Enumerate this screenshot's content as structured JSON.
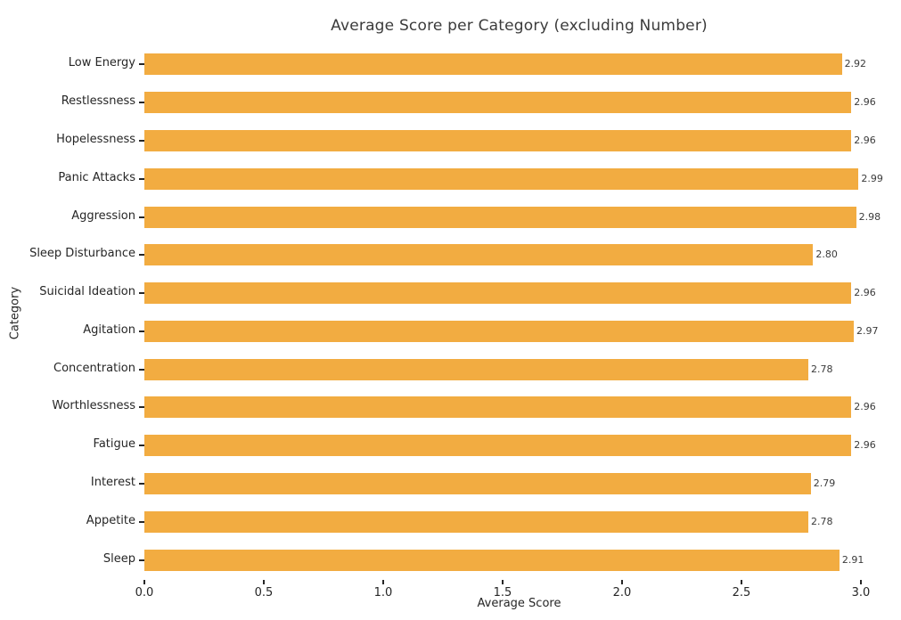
{
  "colors": {
    "bar": "#F2AC41",
    "tick_text": "#262626",
    "title_text": "#3b3b3b",
    "background": "#ffffff"
  },
  "chart_data": {
    "type": "bar",
    "orientation": "horizontal",
    "title": "Average Score per Category (excluding Number)",
    "xlabel": "Average Score",
    "ylabel": "Category",
    "categories": [
      "Low Energy",
      "Restlessness",
      "Hopelessness",
      "Panic Attacks",
      "Aggression",
      "Sleep Disturbance",
      "Suicidal Ideation",
      "Agitation",
      "Concentration",
      "Worthlessness",
      "Fatigue",
      "Interest",
      "Appetite",
      "Sleep"
    ],
    "values": [
      2.92,
      2.96,
      2.96,
      2.99,
      2.98,
      2.8,
      2.96,
      2.97,
      2.78,
      2.96,
      2.96,
      2.79,
      2.78,
      2.91
    ],
    "value_labels": [
      "2.92",
      "2.96",
      "2.96",
      "2.99",
      "2.98",
      "2.80",
      "2.96",
      "2.97",
      "2.78",
      "2.96",
      "2.96",
      "2.79",
      "2.78",
      "2.91"
    ],
    "xticks": [
      0.0,
      0.5,
      1.0,
      1.5,
      2.0,
      2.5,
      3.0
    ],
    "xtick_labels": [
      "0.0",
      "0.5",
      "1.0",
      "1.5",
      "2.0",
      "2.5",
      "3.0"
    ],
    "xlim": [
      0,
      3.138
    ],
    "grid": false,
    "legend": false,
    "bar_color": "#F2AC41"
  }
}
